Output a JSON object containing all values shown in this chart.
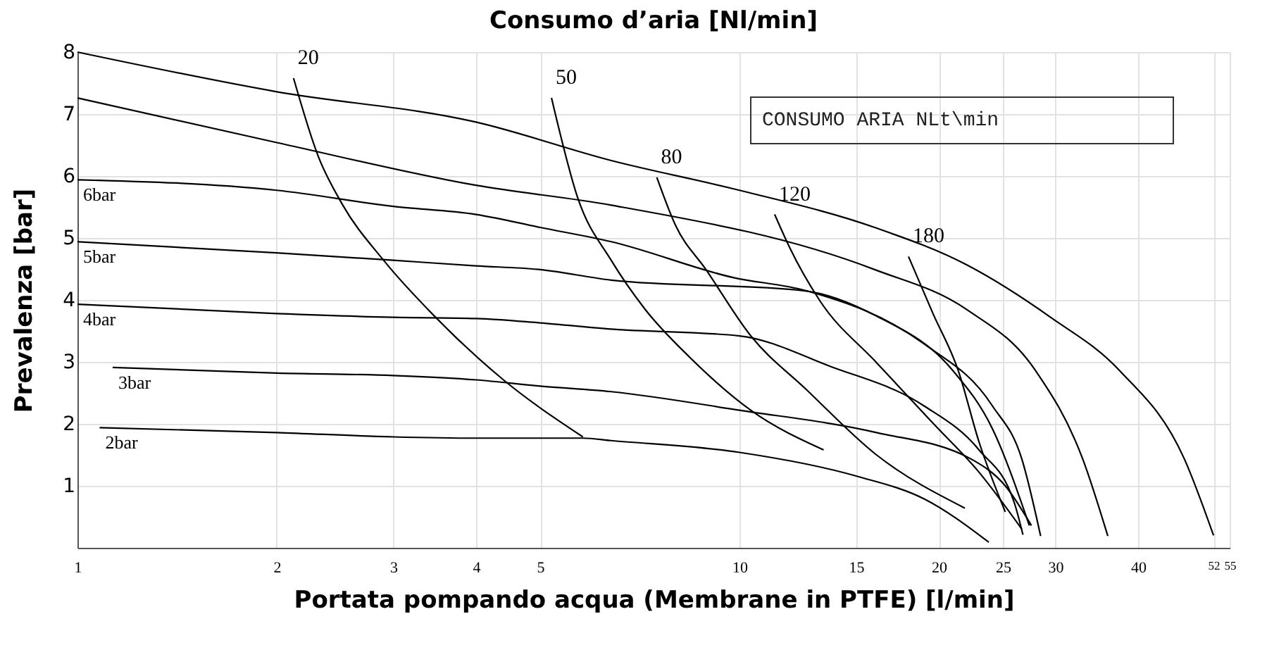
{
  "chart_data": {
    "type": "line",
    "title": "Consumo d’aria [Nl/min]",
    "xlabel": "Portata pompando acqua (Membrane in PTFE) [l/min]",
    "ylabel": "Prevalenza  [bar]",
    "log": "x",
    "xlim": [
      1,
      55
    ],
    "xticks": [
      1,
      2,
      3,
      4,
      5,
      10,
      15,
      20,
      25,
      30,
      40,
      52,
      55
    ],
    "ylim": [
      0,
      8
    ],
    "yticks": [
      1,
      2,
      3,
      4,
      5,
      6,
      7,
      8
    ],
    "grid": true,
    "legend": false,
    "marker": "none",
    "line_style": "solid",
    "annotations": [
      "CONSUMO ARIA NLt\\min"
    ],
    "series": [
      {
        "color": "#000000",
        "x": [
          1,
          2,
          4,
          6.4,
          10,
          16,
          22,
          29.5,
          37.5,
          47,
          52
        ],
        "values": [
          8.0,
          7.36,
          6.87,
          6.25,
          5.77,
          5.17,
          4.57,
          3.72,
          2.86,
          1.43,
          0.2
        ]
      },
      {
        "color": "#000000",
        "x": [
          1,
          2,
          4,
          6.4,
          16,
          22,
          28,
          33,
          36
        ],
        "values": [
          7.26,
          6.54,
          5.85,
          5.53,
          4.49,
          3.85,
          2.86,
          1.43,
          0.19
        ]
      },
      {
        "name": "6bar",
        "color": "#000000",
        "x": [
          1,
          2,
          3,
          4,
          5,
          6.4,
          9.8,
          12.6,
          19,
          24.1,
          26.7,
          28.5
        ],
        "values": [
          5.94,
          5.77,
          5.51,
          5.38,
          5.17,
          4.94,
          4.36,
          4.15,
          3.29,
          2.29,
          1.43,
          0.19
        ]
      },
      {
        "name": "5bar",
        "color": "#000000",
        "x": [
          1,
          2,
          3,
          4,
          5,
          6.4,
          12.5,
          16.1,
          21,
          24.1,
          27.4
        ],
        "values": [
          4.94,
          4.76,
          4.64,
          4.55,
          4.49,
          4.32,
          4.15,
          3.74,
          2.86,
          1.92,
          0.36
        ]
      },
      {
        "name": "4bar",
        "color": "#000000",
        "x": [
          1,
          2,
          3,
          4,
          5,
          6.4,
          10,
          13.7,
          19,
          23,
          26,
          26.8
        ],
        "values": [
          3.93,
          3.78,
          3.72,
          3.7,
          3.63,
          3.53,
          3.42,
          2.93,
          2.29,
          1.58,
          0.73,
          0.21
        ]
      },
      {
        "name": "3bar",
        "color": "#000000",
        "x": [
          1.13,
          2,
          3,
          4,
          5,
          6.4,
          10,
          16.1,
          22.4,
          25.2,
          27.6
        ],
        "values": [
          2.91,
          2.82,
          2.78,
          2.71,
          2.61,
          2.52,
          2.22,
          1.86,
          1.43,
          1.0,
          0.36
        ]
      },
      {
        "name": "2bar",
        "color": "#000000",
        "x": [
          1.08,
          2,
          3,
          4,
          5.8,
          6.4,
          10,
          15.1,
          19,
          23.8
        ],
        "values": [
          1.94,
          1.86,
          1.79,
          1.77,
          1.77,
          1.73,
          1.54,
          1.15,
          0.79,
          0.09
        ]
      },
      {
        "name": "20",
        "color": "#000000",
        "x": [
          2.12,
          2.31,
          2.51,
          2.9,
          3.46,
          4.4,
          5.8
        ],
        "values": [
          7.58,
          6.32,
          5.55,
          4.64,
          3.74,
          2.71,
          1.79
        ]
      },
      {
        "name": "50",
        "color": "#000000",
        "x": [
          5.2,
          5.7,
          6.4,
          7.2,
          8.4,
          10.4,
          13.4
        ],
        "values": [
          7.26,
          5.64,
          4.64,
          3.85,
          3.08,
          2.22,
          1.58
        ]
      },
      {
        "name": "80",
        "color": "#000000",
        "x": [
          7.5,
          8.0,
          8.9,
          10.4,
          12.6,
          16.1,
          21.9
        ],
        "values": [
          5.98,
          5.21,
          4.49,
          3.42,
          2.56,
          1.5,
          0.64
        ]
      },
      {
        "name": "120",
        "color": "#000000",
        "x": [
          11.3,
          11.9,
          13.2,
          16.1,
          19.6,
          23,
          26.7
        ],
        "values": [
          5.38,
          4.85,
          4.0,
          2.99,
          2.01,
          1.22,
          0.3
        ]
      },
      {
        "name": "180",
        "color": "#000000",
        "x": [
          18.0,
          19.6,
          21.4,
          23.0,
          25.2
        ],
        "values": [
          4.7,
          3.78,
          2.86,
          1.71,
          0.58
        ]
      }
    ]
  }
}
